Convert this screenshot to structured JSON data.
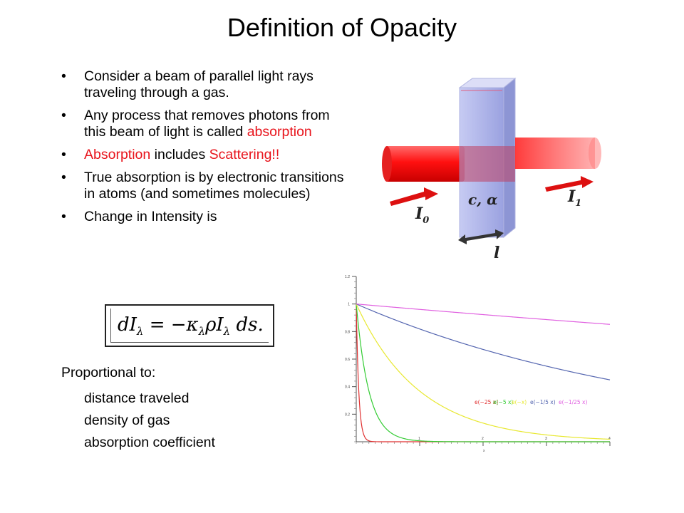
{
  "title": "Definition of Opacity",
  "bullets": [
    {
      "parts": [
        {
          "text": "Consider a beam of parallel light rays traveling through a gas.",
          "red": false
        }
      ]
    },
    {
      "parts": [
        {
          "text": "Any process that removes photons from this beam of light is called ",
          "red": false
        },
        {
          "text": "absorption",
          "red": true
        }
      ]
    },
    {
      "parts": [
        {
          "text": "Absorption",
          "red": true
        },
        {
          "text": " includes ",
          "red": false
        },
        {
          "text": "Scattering!!",
          "red": true
        }
      ]
    },
    {
      "parts": [
        {
          "text": "True absorption is by electronic transitions in atoms (and sometimes molecules)",
          "red": false
        }
      ]
    },
    {
      "parts": [
        {
          "text": "Change in Intensity is",
          "red": false
        }
      ]
    }
  ],
  "equation": {
    "lhs": "dI",
    "lhs_sub": "λ",
    "eq": " = −κ",
    "kappa_sub": "λ",
    "rho": "ρI",
    "i_sub": "λ",
    "tail": " ds."
  },
  "proportional": {
    "title": "Proportional to:",
    "items": [
      "distance traveled",
      "density of gas",
      "absorption coefficient"
    ]
  },
  "illustration": {
    "medium_label": "c, α",
    "length_label": "l",
    "incident_label": "I",
    "incident_sub": "0",
    "transmitted_label": "I",
    "transmitted_sub": "1",
    "beam_color": "#ff1a1a",
    "medium_color": "#8d95e0"
  },
  "chart_data": {
    "type": "line",
    "x": [
      0,
      0.05,
      0.1,
      0.15,
      0.2,
      0.3,
      0.4,
      0.5,
      0.6,
      0.8,
      1.0,
      1.2,
      1.5,
      2.0,
      2.5,
      3.0,
      3.5,
      4.0
    ],
    "xlim": [
      0,
      4
    ],
    "ylim": [
      0,
      1.2
    ],
    "xticks": [
      "1",
      "2",
      "3",
      "4"
    ],
    "yticks": [
      "0.2",
      "0.4",
      "0.6",
      "0.8",
      "1",
      "1.2"
    ],
    "xlabel": "x",
    "grid": false,
    "series": [
      {
        "rate": 25,
        "color": "#e03030",
        "values": [
          1,
          0.2865,
          0.0821,
          0.0235,
          0.0067,
          0.0006,
          0.0,
          0.0,
          0.0,
          0.0,
          0.0,
          0.0,
          0.0,
          0.0,
          0.0,
          0.0,
          0.0,
          0.0
        ]
      },
      {
        "rate": 5,
        "color": "#33cc33",
        "values": [
          1,
          0.7788,
          0.6065,
          0.4724,
          0.3679,
          0.2231,
          0.1353,
          0.0821,
          0.0498,
          0.0183,
          0.0067,
          0.0025,
          0.0006,
          0.0,
          0.0,
          0.0,
          0.0,
          0.0
        ]
      },
      {
        "rate": 1,
        "color": "#e8e830",
        "values": [
          1,
          0.9512,
          0.9048,
          0.8607,
          0.8187,
          0.7408,
          0.6703,
          0.6065,
          0.5488,
          0.4493,
          0.3679,
          0.3012,
          0.2231,
          0.1353,
          0.0821,
          0.0498,
          0.0302,
          0.0183
        ]
      },
      {
        "rate": 0.2,
        "color": "#5566b0",
        "values": [
          1,
          0.99,
          0.9802,
          0.9704,
          0.9608,
          0.9418,
          0.9231,
          0.9048,
          0.8869,
          0.8521,
          0.8187,
          0.7866,
          0.7408,
          0.6703,
          0.6065,
          0.5488,
          0.4966,
          0.4493
        ]
      },
      {
        "rate": 0.04,
        "color": "#e060e0",
        "values": [
          1,
          0.998,
          0.996,
          0.994,
          0.992,
          0.988,
          0.9841,
          0.9802,
          0.9763,
          0.9685,
          0.9608,
          0.9531,
          0.9418,
          0.9231,
          0.9048,
          0.8869,
          0.8694,
          0.8521
        ]
      }
    ],
    "legend": [
      {
        "text": "e(−25 x)",
        "color": "#e03030"
      },
      {
        "text": "e(−5 x)",
        "color": "#33cc33"
      },
      {
        "text": "e(−x)",
        "color": "#e8e830"
      },
      {
        "text": "e(−1/5 x)",
        "color": "#5566b0"
      },
      {
        "text": "e(−1/25 x)",
        "color": "#e060e0"
      }
    ]
  }
}
